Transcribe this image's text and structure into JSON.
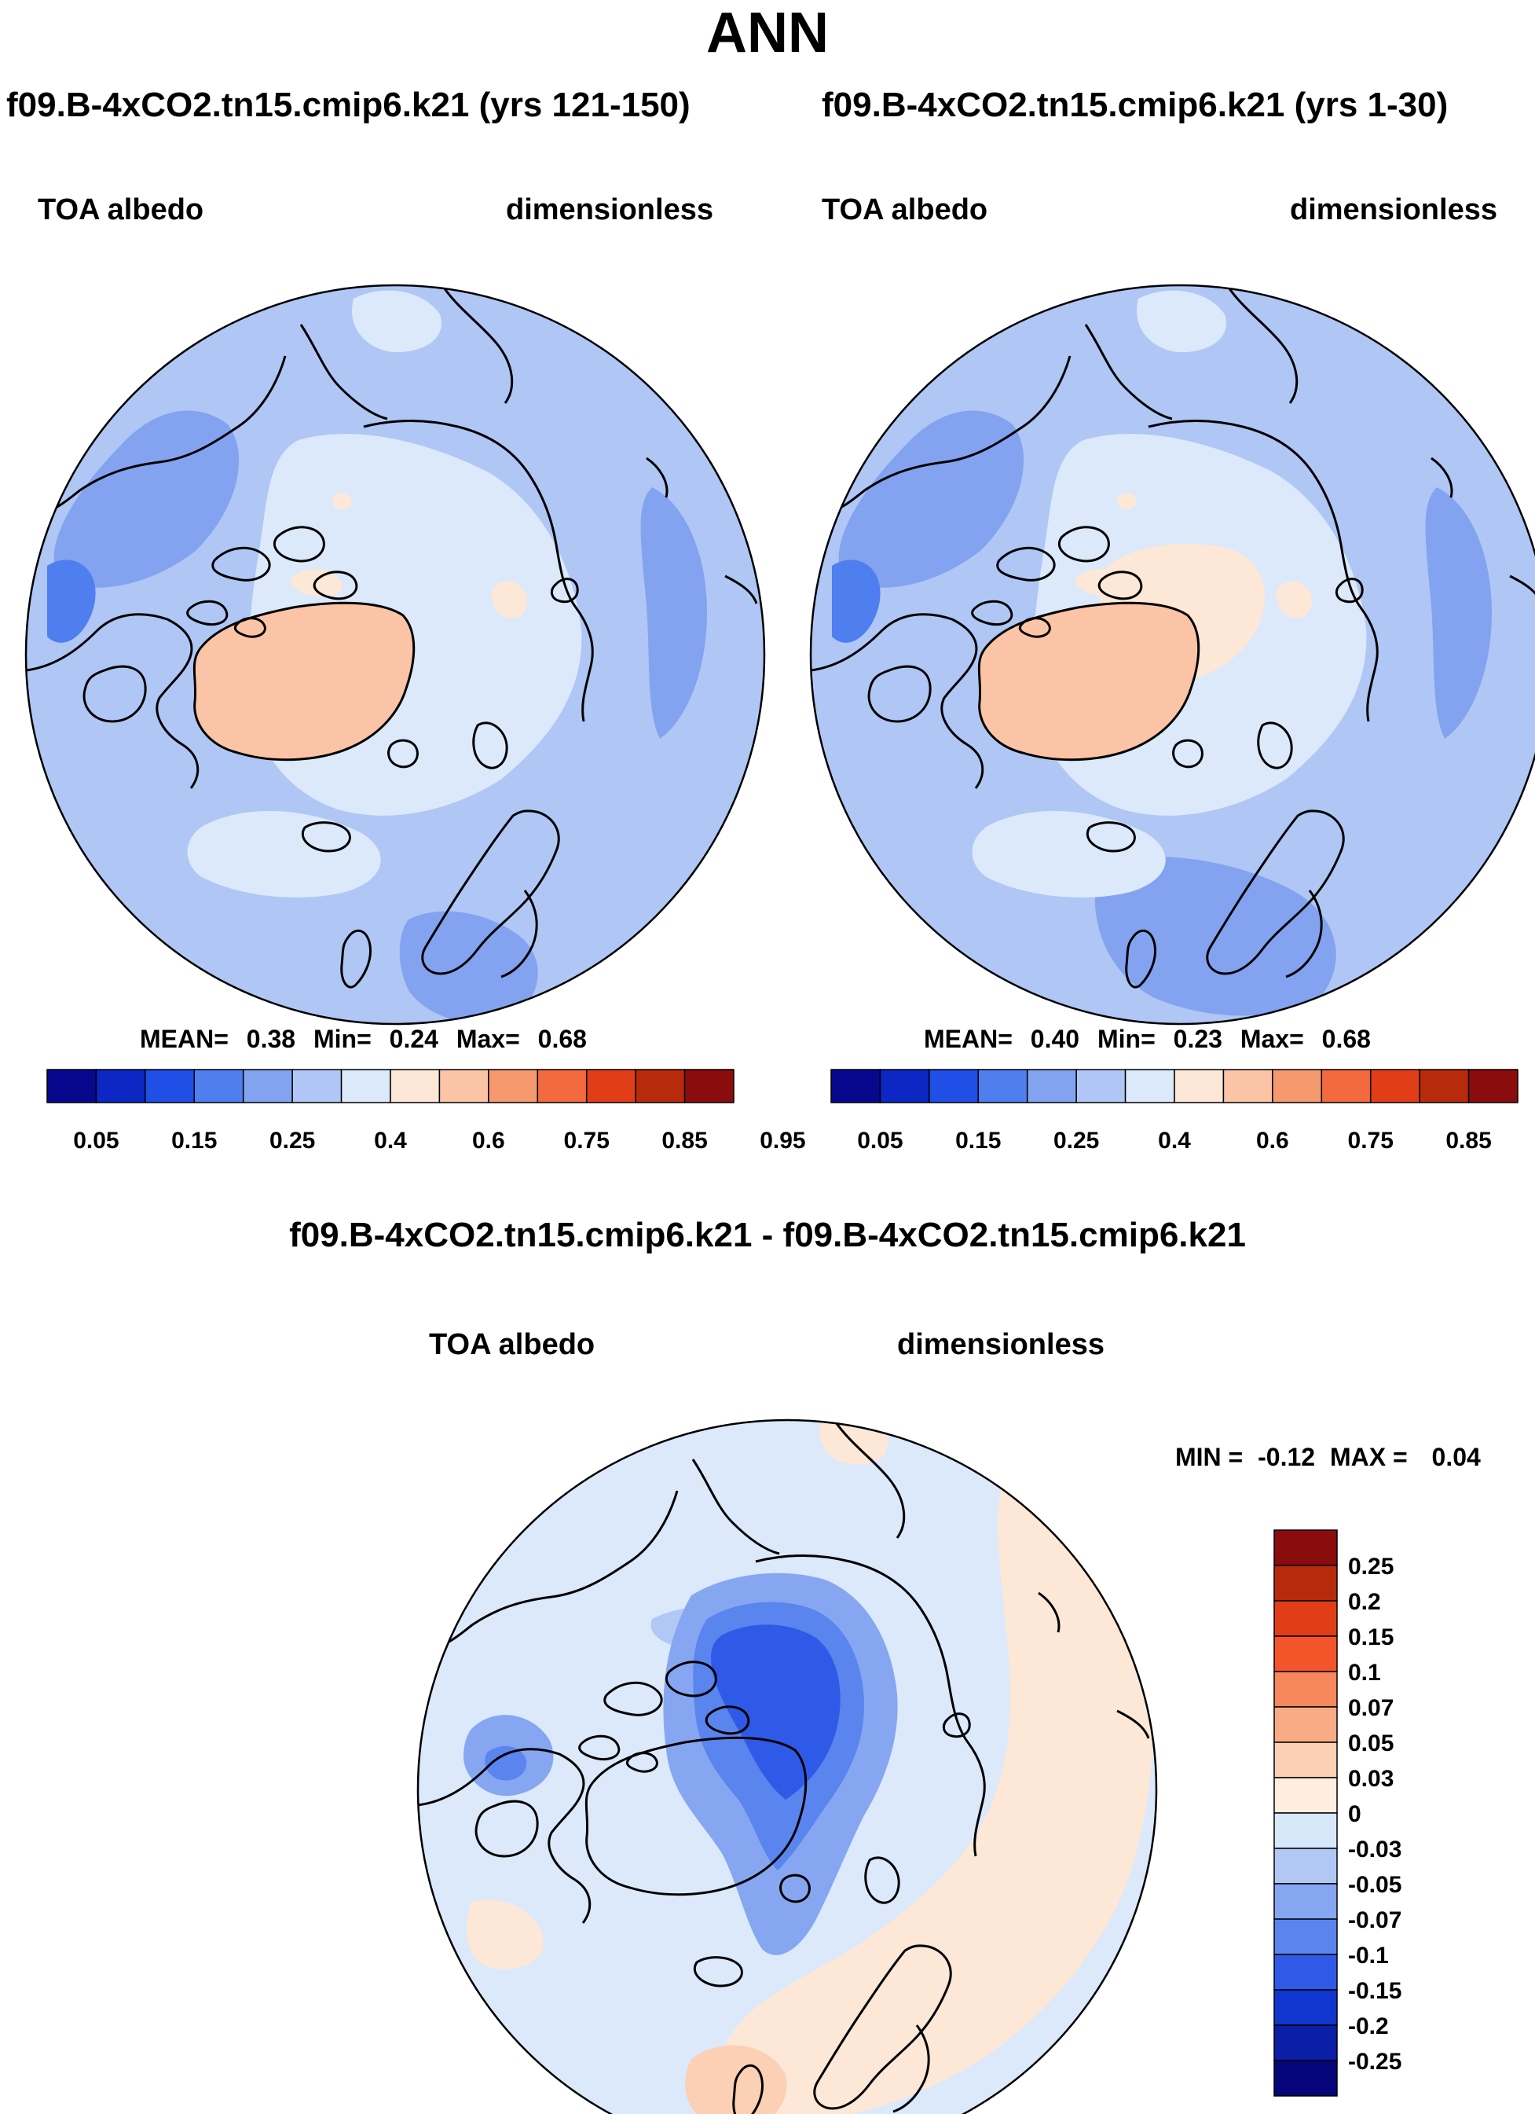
{
  "page_title": "ANN",
  "panels": [
    {
      "id": "case",
      "case_title": "f09.B-4xCO2.tn15.cmip6.k21 (yrs 121-150)",
      "variable": "TOA albedo",
      "units": "dimensionless",
      "stats": {
        "mean_label": "MEAN=",
        "mean": "0.38",
        "min_label": "Min=",
        "min": "0.24",
        "max_label": "Max=",
        "max": "0.68"
      }
    },
    {
      "id": "control",
      "case_title": "f09.B-4xCO2.tn15.cmip6.k21 (yrs 1-30)",
      "variable": "TOA albedo",
      "units": "dimensionless",
      "stats": {
        "mean_label": "MEAN=",
        "mean": "0.40",
        "min_label": "Min=",
        "min": "0.23",
        "max_label": "Max=",
        "max": "0.68"
      }
    }
  ],
  "difference": {
    "title": "f09.B-4xCO2.tn15.cmip6.k21 - f09.B-4xCO2.tn15.cmip6.k21",
    "variable": "TOA albedo",
    "units": "dimensionless",
    "stats": {
      "min_label": "MIN =",
      "min": "-0.12",
      "max_label": "MAX =",
      "max": "0.04"
    }
  },
  "abs_colorbar": {
    "tick_labels": [
      "0.05",
      "0.15",
      "0.25",
      "0.4",
      "0.6",
      "0.75",
      "0.85",
      "0.95"
    ],
    "colors": [
      "#08088f",
      "#0c27c4",
      "#1f4fe6",
      "#4f7eee",
      "#83a3f0",
      "#b0c6f5",
      "#dbe9fb",
      "#fde7d7",
      "#fbc4a6",
      "#f7996f",
      "#f26a3d",
      "#e13d17",
      "#b82a0c",
      "#8a0c0c"
    ]
  },
  "diff_colorbar": {
    "tick_labels": [
      "0.25",
      "0.2",
      "0.15",
      "0.1",
      "0.07",
      "0.05",
      "0.03",
      "0",
      "-0.03",
      "-0.05",
      "-0.07",
      "-0.1",
      "-0.15",
      "-0.2",
      "-0.25"
    ],
    "colors": [
      "#8a0c0c",
      "#b82a0c",
      "#e13d17",
      "#f4542a",
      "#f7875c",
      "#f9ab85",
      "#fbd0b4",
      "#fdeee0",
      "#d8e8fb",
      "#b1c8f5",
      "#86a6f1",
      "#5a84ee",
      "#2f5ae8",
      "#1036cf",
      "#0a1ea8",
      "#06057a"
    ]
  },
  "map_fields": {
    "ocean_case": "#b0c6f5",
    "ocean_control": "#b0c6f5",
    "ocean_diff": "#dbe9fb",
    "arctic_case": "#dbe9fb",
    "arctic_control": "#fde7d7",
    "arctic_diff": "#2f5ae8",
    "greenland": "#fbc4a6",
    "darker_blue": "#83a3f0",
    "darkest_blue": "#4f7eee",
    "diff_warm": "#fde7d7",
    "diff_warm2": "#fbd0b4"
  }
}
